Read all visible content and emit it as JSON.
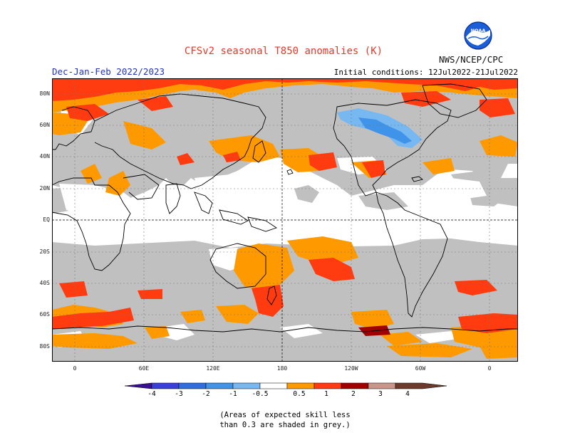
{
  "header": {
    "title": "CFSv2 seasonal T850 anomalies (K)",
    "season": "Dec-Jan-Feb 2022/2023",
    "initial_conditions": "Initial conditions: 12Jul2022-21Jul2022",
    "agency": "NWS/NCEP/CPC",
    "logo_text": "NOAA"
  },
  "axes": {
    "lat_labels": [
      "80N",
      "60N",
      "40N",
      "20N",
      "EQ",
      "20S",
      "40S",
      "60S",
      "80S"
    ],
    "lon_labels": [
      "0",
      "60E",
      "120E",
      "180",
      "120W",
      "60W",
      "0"
    ]
  },
  "legend": {
    "levels": [
      "-4",
      "-3",
      "-2",
      "-1",
      "-0.5",
      "0.5",
      "1",
      "2",
      "3",
      "4"
    ],
    "colors": {
      "lt_m4": "#3a0f96",
      "m4_m3": "#3a3fd8",
      "m3_m2": "#2f6fdc",
      "m2_m1": "#3f93e8",
      "m1_m05": "#78b8f0",
      "neutral": "#ffffff",
      "p05_p1": "#ff9900",
      "p1_p2": "#ff3b0f",
      "p2_p3": "#a10000",
      "p3_p4": "#c8968a",
      "gt_p4": "#6b3a2a",
      "low_skill": "#c0c0c0"
    }
  },
  "note": {
    "line1": "(Areas of expected skill less",
    "line2": "than 0.3 are shaded in grey.)"
  }
}
